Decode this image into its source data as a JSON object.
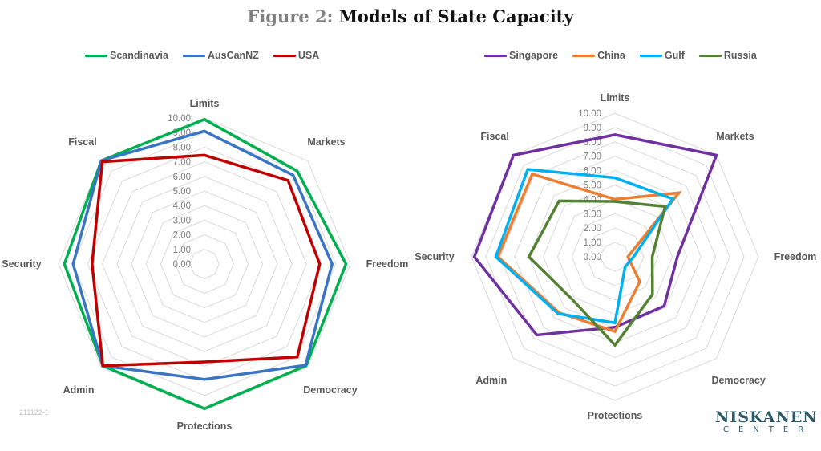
{
  "title": {
    "prefix": "Figure 2:",
    "main": "Models of State Capacity"
  },
  "code": "211122-1",
  "logo": {
    "line1": "NISKANEN",
    "line2": "CENTER"
  },
  "chart_data": [
    {
      "type": "radar",
      "title": "",
      "categories": [
        "Limits",
        "Markets",
        "Freedom",
        "Democracy",
        "Protections",
        "Admin",
        "Security",
        "Fiscal"
      ],
      "tick_labels": [
        "0.00",
        "1.00",
        "2.00",
        "3.00",
        "4.00",
        "5.00",
        "6.00",
        "7.00",
        "8.00",
        "9.00",
        "10.00"
      ],
      "range": [
        0,
        10
      ],
      "legend_position": "top",
      "grid": true,
      "series": [
        {
          "name": "Scandinavia",
          "color": "#00b050",
          "values": [
            9.9,
            9.0,
            9.7,
            9.85,
            9.9,
            9.85,
            9.6,
            10.0
          ]
        },
        {
          "name": "AusCanNZ",
          "color": "#3a75c4",
          "values": [
            9.1,
            8.6,
            8.75,
            9.8,
            7.9,
            9.85,
            9.0,
            10.0
          ]
        },
        {
          "name": "USA",
          "color": "#c00000",
          "values": [
            7.45,
            8.1,
            7.9,
            9.0,
            6.7,
            9.85,
            7.7,
            9.9
          ]
        }
      ]
    },
    {
      "type": "radar",
      "title": "",
      "categories": [
        "Limits",
        "Markets",
        "Freedom",
        "Democracy",
        "Protections",
        "Admin",
        "Security",
        "Fiscal"
      ],
      "tick_labels": [
        "0.00",
        "1.00",
        "2.00",
        "3.00",
        "4.00",
        "5.00",
        "6.00",
        "7.00",
        "8.00",
        "9.00",
        "10.00"
      ],
      "range": [
        0,
        10
      ],
      "legend_position": "top",
      "grid": true,
      "series": [
        {
          "name": "Singapore",
          "color": "#7030a0",
          "values": [
            8.5,
            10.0,
            4.35,
            4.85,
            4.9,
            7.7,
            9.8,
            10.0
          ]
        },
        {
          "name": "China",
          "color": "#ed7d31",
          "values": [
            4.0,
            6.3,
            0.9,
            2.45,
            5.2,
            5.5,
            8.15,
            8.15
          ]
        },
        {
          "name": "Gulf",
          "color": "#00b0f0",
          "values": [
            5.5,
            5.7,
            1.3,
            1.0,
            4.6,
            5.6,
            8.3,
            8.6
          ]
        },
        {
          "name": "Russia",
          "color": "#548235",
          "values": [
            3.85,
            4.95,
            2.6,
            3.7,
            6.15,
            4.2,
            6.0,
            5.5
          ]
        }
      ]
    }
  ]
}
